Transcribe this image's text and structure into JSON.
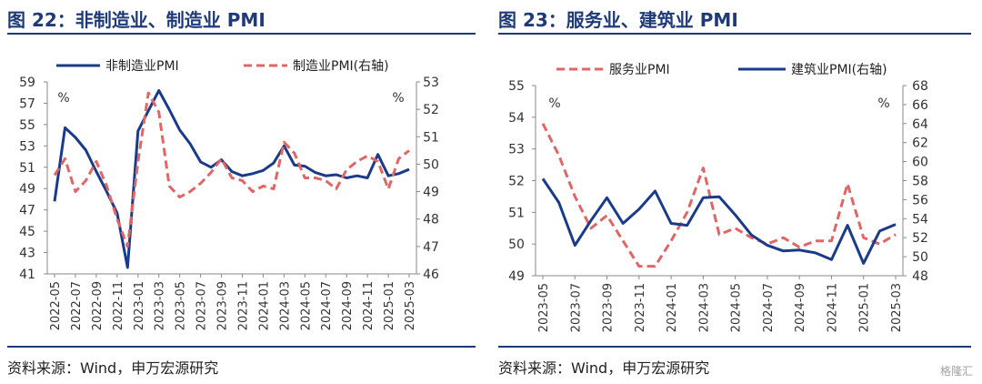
{
  "left_panel": {
    "title": "图 22：非制造业、制造业 PMI",
    "source": "资料来源：Wind，申万宏源研究"
  },
  "right_panel": {
    "title": "图 23：服务业、建筑业 PMI",
    "source": "资料来源：Wind，申万宏源研究"
  },
  "watermark": "格隆汇",
  "chart_data": [
    {
      "type": "line",
      "left_unit": "%",
      "right_unit": "%",
      "ylim_left": [
        41,
        59
      ],
      "yticks_left": [
        41,
        43,
        45,
        47,
        49,
        51,
        53,
        55,
        57,
        59
      ],
      "ylim_right": [
        46,
        53
      ],
      "yticks_right": [
        46,
        47,
        48,
        49,
        50,
        51,
        52,
        53
      ],
      "x": [
        "2022-05",
        "2022-06",
        "2022-07",
        "2022-08",
        "2022-09",
        "2022-10",
        "2022-11",
        "2022-12",
        "2023-01",
        "2023-02",
        "2023-03",
        "2023-04",
        "2023-05",
        "2023-06",
        "2023-07",
        "2023-08",
        "2023-09",
        "2023-10",
        "2023-11",
        "2023-12",
        "2024-01",
        "2024-02",
        "2024-03",
        "2024-04",
        "2024-05",
        "2024-06",
        "2024-07",
        "2024-08",
        "2024-09",
        "2024-10",
        "2024-11",
        "2024-12",
        "2025-01",
        "2025-02",
        "2025-03"
      ],
      "xtick_labels": [
        "2022-05",
        "2022-07",
        "2022-09",
        "2022-11",
        "2023-01",
        "2023-03",
        "2023-05",
        "2023-07",
        "2023-09",
        "2023-11",
        "2024-01",
        "2024-03",
        "2024-05",
        "2024-07",
        "2024-09",
        "2024-11",
        "2025-01",
        "2025-03"
      ],
      "series": [
        {
          "name": "非制造业PMI",
          "axis": "left",
          "style": "solid",
          "color": "#1a3a8a",
          "values": [
            47.8,
            54.7,
            53.8,
            52.6,
            50.6,
            48.7,
            46.7,
            41.6,
            54.4,
            56.3,
            58.2,
            56.4,
            54.5,
            53.2,
            51.5,
            51.0,
            51.7,
            50.6,
            50.2,
            50.4,
            50.7,
            51.4,
            53.0,
            51.2,
            51.1,
            50.5,
            50.2,
            50.3,
            50.0,
            50.2,
            50.0,
            52.2,
            50.2,
            50.4,
            50.8
          ]
        },
        {
          "name": "制造业PMI(右轴)",
          "axis": "right",
          "style": "dashed",
          "color": "#e06666",
          "values": [
            49.6,
            50.2,
            49.0,
            49.4,
            50.1,
            49.2,
            48.0,
            47.0,
            50.1,
            52.6,
            51.9,
            49.2,
            48.8,
            49.0,
            49.3,
            49.7,
            50.2,
            49.5,
            49.4,
            49.0,
            49.2,
            49.1,
            50.8,
            50.4,
            49.5,
            49.5,
            49.4,
            49.1,
            49.8,
            50.1,
            50.3,
            50.1,
            49.1,
            50.2,
            50.5
          ]
        }
      ]
    },
    {
      "type": "line",
      "left_unit": "%",
      "right_unit": "%",
      "ylim_left": [
        49,
        55
      ],
      "yticks_left": [
        49,
        50,
        51,
        52,
        53,
        54,
        55
      ],
      "ylim_right": [
        48,
        68
      ],
      "yticks_right": [
        48,
        50,
        52,
        54,
        56,
        58,
        60,
        62,
        64,
        66,
        68
      ],
      "x": [
        "2023-05",
        "2023-06",
        "2023-07",
        "2023-08",
        "2023-09",
        "2023-10",
        "2023-11",
        "2023-12",
        "2024-01",
        "2024-02",
        "2024-03",
        "2024-04",
        "2024-05",
        "2024-06",
        "2024-07",
        "2024-08",
        "2024-09",
        "2024-10",
        "2024-11",
        "2024-12",
        "2025-01",
        "2025-02",
        "2025-03"
      ],
      "xtick_labels": [
        "2023-05",
        "2023-07",
        "2023-09",
        "2023-11",
        "2024-01",
        "2024-03",
        "2024-05",
        "2024-07",
        "2024-09",
        "2024-11",
        "2025-01",
        "2025-03"
      ],
      "series": [
        {
          "name": "服务业PMI",
          "axis": "left",
          "style": "dashed",
          "color": "#e06666",
          "values": [
            53.8,
            52.8,
            51.5,
            50.5,
            50.9,
            50.1,
            49.3,
            49.3,
            50.1,
            51.0,
            52.4,
            50.3,
            50.5,
            50.2,
            50.0,
            50.2,
            49.9,
            50.1,
            50.1,
            51.9,
            50.2,
            50.0,
            50.3
          ]
        },
        {
          "name": "建筑业PMI(右轴)",
          "axis": "right",
          "style": "solid",
          "color": "#1a3a8a",
          "values": [
            58.2,
            55.7,
            51.2,
            53.8,
            56.2,
            53.5,
            55.0,
            56.9,
            53.5,
            53.3,
            56.2,
            56.3,
            54.4,
            52.3,
            51.2,
            50.6,
            50.7,
            50.4,
            49.7,
            53.3,
            49.3,
            52.7,
            53.4
          ]
        }
      ]
    }
  ]
}
